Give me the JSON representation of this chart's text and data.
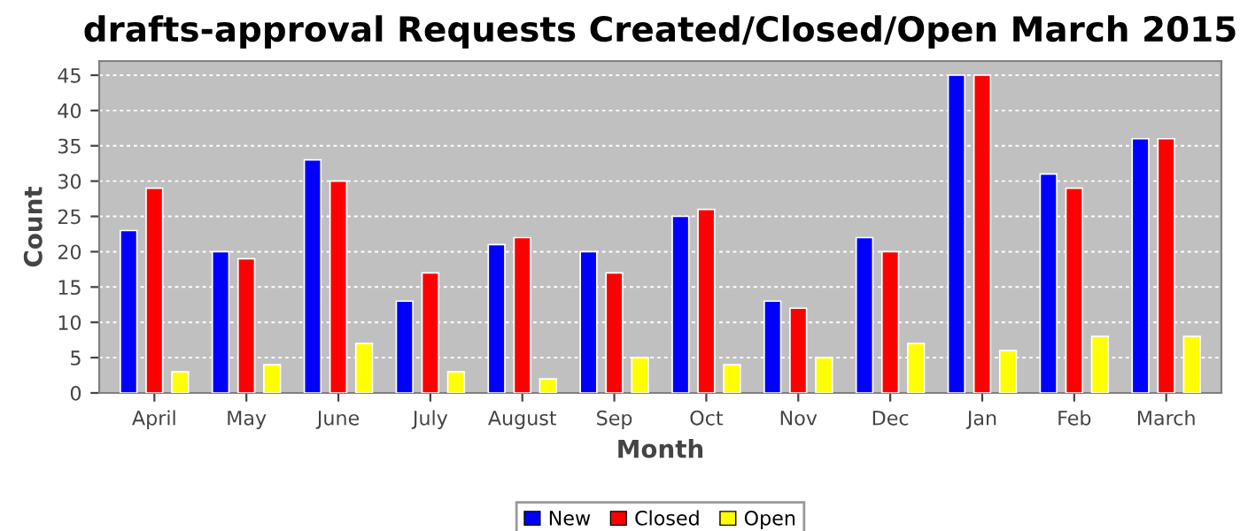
{
  "chart_data": {
    "type": "bar",
    "title": "drafts-approval Requests Created/Closed/Open March 2015",
    "xlabel": "Month",
    "ylabel": "Count",
    "categories": [
      "April",
      "May",
      "June",
      "July",
      "August",
      "Sep",
      "Oct",
      "Nov",
      "Dec",
      "Jan",
      "Feb",
      "March"
    ],
    "series": [
      {
        "name": "New",
        "color": "#0000ff",
        "values": [
          23,
          20,
          33,
          13,
          21,
          20,
          25,
          13,
          22,
          45,
          31,
          36
        ]
      },
      {
        "name": "Closed",
        "color": "#ff0000",
        "values": [
          29,
          19,
          30,
          17,
          22,
          17,
          26,
          12,
          20,
          45,
          29,
          36
        ]
      },
      {
        "name": "Open",
        "color": "#ffff00",
        "values": [
          3,
          4,
          7,
          3,
          2,
          5,
          4,
          5,
          7,
          6,
          8,
          8
        ]
      }
    ],
    "ylim": [
      0,
      47
    ],
    "yticks": [
      0,
      5,
      10,
      15,
      20,
      25,
      30,
      35,
      40,
      45
    ],
    "grid": "y",
    "legend": "bottom"
  }
}
